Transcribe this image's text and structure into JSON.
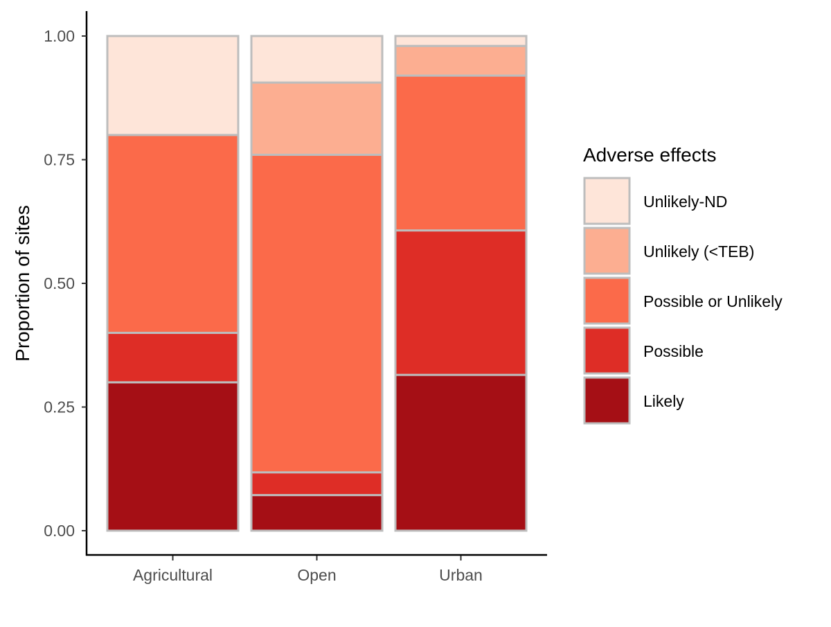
{
  "chart_data": {
    "type": "bar",
    "stacked": true,
    "ylabel": "Proportion of sites",
    "xlabel": "",
    "ylim": [
      0,
      1
    ],
    "y_ticks": [
      "0.00",
      "0.25",
      "0.50",
      "0.75",
      "1.00"
    ],
    "y_tick_values": [
      0,
      0.25,
      0.5,
      0.75,
      1.0
    ],
    "categories": [
      "Agricultural",
      "Open",
      "Urban"
    ],
    "series": [
      {
        "name": "Likely",
        "color": "#a50f15",
        "values": [
          0.3,
          0.072,
          0.315
        ]
      },
      {
        "name": "Possible",
        "color": "#de2d26",
        "values": [
          0.1,
          0.046,
          0.292
        ]
      },
      {
        "name": "Possible or Unlikely",
        "color": "#fb6a4a",
        "values": [
          0.4,
          0.642,
          0.313
        ]
      },
      {
        "name": "Unlikely (<TEB)",
        "color": "#fcae91",
        "values": [
          0.0,
          0.146,
          0.06
        ]
      },
      {
        "name": "Unlikely-ND",
        "color": "#fee5d9",
        "values": [
          0.2,
          0.094,
          0.02
        ]
      }
    ],
    "legend": {
      "title": "Adverse effects",
      "position": "right",
      "order": [
        "Unlikely-ND",
        "Unlikely (<TEB)",
        "Possible or Unlikely",
        "Possible",
        "Likely"
      ]
    },
    "bar_outline_color": "#bdbdbd",
    "grid": false
  }
}
